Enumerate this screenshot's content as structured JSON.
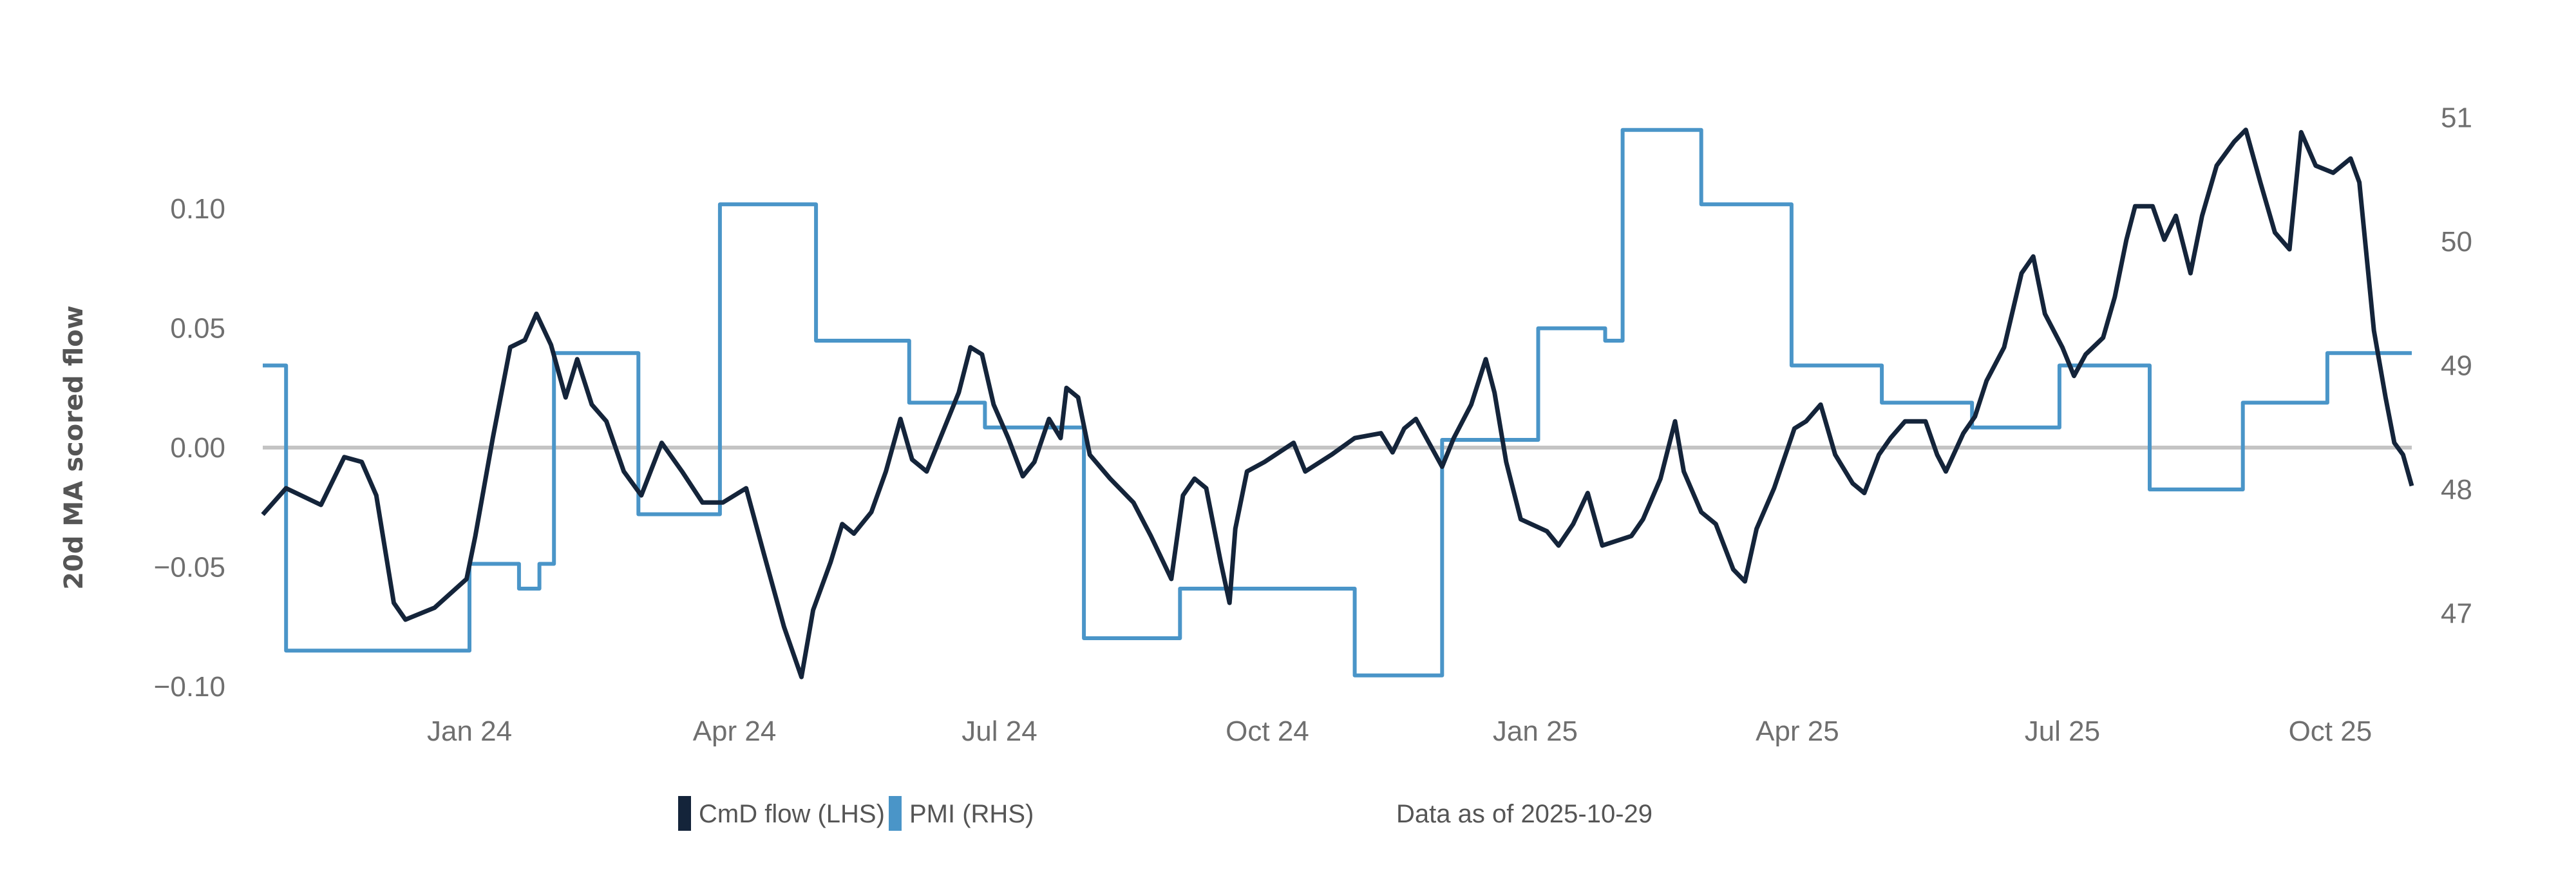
{
  "chart_data": {
    "type": "line",
    "title": "",
    "ylabel": "20d MA scored flow",
    "xlim": [
      "2023-10-22",
      "2025-10-29"
    ],
    "ylim": [
      -0.115,
      0.135
    ],
    "y2lim": [
      46.2,
      51.4
    ],
    "grid": false,
    "zero_line": true,
    "legend_position": "bottom",
    "x_ticks": [
      {
        "date": "2024-01-01",
        "label": "Jan 24"
      },
      {
        "date": "2024-04-01",
        "label": "Apr 24"
      },
      {
        "date": "2024-07-01",
        "label": "Jul 24"
      },
      {
        "date": "2024-10-01",
        "label": "Oct 24"
      },
      {
        "date": "2025-01-01",
        "label": "Jan 25"
      },
      {
        "date": "2025-04-01",
        "label": "Apr 25"
      },
      {
        "date": "2025-07-01",
        "label": "Jul 25"
      },
      {
        "date": "2025-10-01",
        "label": "Oct 25"
      }
    ],
    "y_ticks": [
      {
        "value": 0.1,
        "label": "0.10"
      },
      {
        "value": 0.05,
        "label": "0.05"
      },
      {
        "value": 0.0,
        "label": "0.00"
      },
      {
        "value": -0.05,
        "label": "−0.05"
      },
      {
        "value": -0.1,
        "label": "−0.10"
      }
    ],
    "y2_ticks": [
      {
        "value": 51,
        "label": "51"
      },
      {
        "value": 50,
        "label": "50"
      },
      {
        "value": 49,
        "label": "49"
      },
      {
        "value": 48,
        "label": "48"
      },
      {
        "value": 47,
        "label": "47"
      }
    ],
    "note": "Data as of 2025-10-29",
    "series": [
      {
        "name": "CmD flow (LHS)",
        "axis": "left",
        "color": "#14243a",
        "points": [
          [
            "2023-10-22",
            -0.028
          ],
          [
            "2023-10-30",
            -0.017
          ],
          [
            "2023-11-11",
            -0.024
          ],
          [
            "2023-11-19",
            -0.004
          ],
          [
            "2023-11-25",
            -0.006
          ],
          [
            "2023-11-30",
            -0.02
          ],
          [
            "2023-12-06",
            -0.065
          ],
          [
            "2023-12-10",
            -0.072
          ],
          [
            "2023-12-20",
            -0.067
          ],
          [
            "2023-12-31",
            -0.055
          ],
          [
            "2024-01-03",
            -0.037
          ],
          [
            "2024-01-09",
            0.004
          ],
          [
            "2024-01-15",
            0.042
          ],
          [
            "2024-01-20",
            0.045
          ],
          [
            "2024-01-24",
            0.056
          ],
          [
            "2024-01-29",
            0.043
          ],
          [
            "2024-02-03",
            0.021
          ],
          [
            "2024-02-07",
            0.037
          ],
          [
            "2024-02-12",
            0.018
          ],
          [
            "2024-02-17",
            0.011
          ],
          [
            "2024-02-23",
            -0.01
          ],
          [
            "2024-02-29",
            -0.02
          ],
          [
            "2024-03-07",
            0.002
          ],
          [
            "2024-03-14",
            -0.01
          ],
          [
            "2024-03-21",
            -0.023
          ],
          [
            "2024-03-28",
            -0.023
          ],
          [
            "2024-04-05",
            -0.017
          ],
          [
            "2024-04-11",
            -0.044
          ],
          [
            "2024-04-18",
            -0.075
          ],
          [
            "2024-04-24",
            -0.096
          ],
          [
            "2024-04-28",
            -0.068
          ],
          [
            "2024-05-04",
            -0.048
          ],
          [
            "2024-05-08",
            -0.032
          ],
          [
            "2024-05-12",
            -0.036
          ],
          [
            "2024-05-18",
            -0.027
          ],
          [
            "2024-05-23",
            -0.01
          ],
          [
            "2024-05-28",
            0.012
          ],
          [
            "2024-06-01",
            -0.005
          ],
          [
            "2024-06-06",
            -0.01
          ],
          [
            "2024-06-12",
            0.008
          ],
          [
            "2024-06-17",
            0.023
          ],
          [
            "2024-06-21",
            0.042
          ],
          [
            "2024-06-25",
            0.039
          ],
          [
            "2024-06-29",
            0.018
          ],
          [
            "2024-07-04",
            0.004
          ],
          [
            "2024-07-09",
            -0.012
          ],
          [
            "2024-07-13",
            -0.006
          ],
          [
            "2024-07-18",
            0.012
          ],
          [
            "2024-07-22",
            0.004
          ],
          [
            "2024-07-24",
            0.025
          ],
          [
            "2024-07-28",
            0.021
          ],
          [
            "2024-08-01",
            -0.003
          ],
          [
            "2024-08-08",
            -0.013
          ],
          [
            "2024-08-16",
            -0.023
          ],
          [
            "2024-08-22",
            -0.037
          ],
          [
            "2024-08-29",
            -0.055
          ],
          [
            "2024-09-02",
            -0.02
          ],
          [
            "2024-09-06",
            -0.013
          ],
          [
            "2024-09-10",
            -0.017
          ],
          [
            "2024-09-15",
            -0.048
          ],
          [
            "2024-09-18",
            -0.065
          ],
          [
            "2024-09-20",
            -0.034
          ],
          [
            "2024-09-24",
            -0.01
          ],
          [
            "2024-09-30",
            -0.006
          ],
          [
            "2024-10-10",
            0.002
          ],
          [
            "2024-10-14",
            -0.01
          ],
          [
            "2024-10-23",
            -0.003
          ],
          [
            "2024-10-31",
            0.004
          ],
          [
            "2024-11-09",
            0.006
          ],
          [
            "2024-11-13",
            -0.002
          ],
          [
            "2024-11-17",
            0.008
          ],
          [
            "2024-11-21",
            0.012
          ],
          [
            "2024-11-30",
            -0.008
          ],
          [
            "2024-12-04",
            0.004
          ],
          [
            "2024-12-10",
            0.018
          ],
          [
            "2024-12-15",
            0.037
          ],
          [
            "2024-12-18",
            0.023
          ],
          [
            "2024-12-22",
            -0.006
          ],
          [
            "2024-12-27",
            -0.03
          ],
          [
            "2025-01-05",
            -0.035
          ],
          [
            "2025-01-09",
            -0.041
          ],
          [
            "2025-01-14",
            -0.032
          ],
          [
            "2025-01-19",
            -0.019
          ],
          [
            "2025-01-24",
            -0.041
          ],
          [
            "2025-02-03",
            -0.037
          ],
          [
            "2025-02-07",
            -0.03
          ],
          [
            "2025-02-13",
            -0.013
          ],
          [
            "2025-02-18",
            0.011
          ],
          [
            "2025-02-21",
            -0.01
          ],
          [
            "2025-02-27",
            -0.027
          ],
          [
            "2025-03-04",
            -0.032
          ],
          [
            "2025-03-10",
            -0.051
          ],
          [
            "2025-03-14",
            -0.056
          ],
          [
            "2025-03-18",
            -0.034
          ],
          [
            "2025-03-24",
            -0.017
          ],
          [
            "2025-03-31",
            0.008
          ],
          [
            "2025-04-04",
            0.011
          ],
          [
            "2025-04-09",
            0.018
          ],
          [
            "2025-04-14",
            -0.003
          ],
          [
            "2025-04-20",
            -0.015
          ],
          [
            "2025-04-24",
            -0.019
          ],
          [
            "2025-04-29",
            -0.003
          ],
          [
            "2025-05-03",
            0.004
          ],
          [
            "2025-05-08",
            0.011
          ],
          [
            "2025-05-15",
            0.011
          ],
          [
            "2025-05-19",
            -0.003
          ],
          [
            "2025-05-22",
            -0.01
          ],
          [
            "2025-05-28",
            0.006
          ],
          [
            "2025-06-01",
            0.013
          ],
          [
            "2025-06-05",
            0.028
          ],
          [
            "2025-06-11",
            0.042
          ],
          [
            "2025-06-17",
            0.073
          ],
          [
            "2025-06-21",
            0.08
          ],
          [
            "2025-06-25",
            0.056
          ],
          [
            "2025-07-01",
            0.042
          ],
          [
            "2025-07-05",
            0.03
          ],
          [
            "2025-07-09",
            0.039
          ],
          [
            "2025-07-15",
            0.046
          ],
          [
            "2025-07-19",
            0.063
          ],
          [
            "2025-07-23",
            0.087
          ],
          [
            "2025-07-26",
            0.101
          ],
          [
            "2025-08-01",
            0.101
          ],
          [
            "2025-08-05",
            0.087
          ],
          [
            "2025-08-09",
            0.097
          ],
          [
            "2025-08-14",
            0.073
          ],
          [
            "2025-08-18",
            0.097
          ],
          [
            "2025-08-23",
            0.118
          ],
          [
            "2025-08-29",
            0.128
          ],
          [
            "2025-09-02",
            0.133
          ],
          [
            "2025-09-07",
            0.111
          ],
          [
            "2025-09-12",
            0.09
          ],
          [
            "2025-09-17",
            0.083
          ],
          [
            "2025-09-21",
            0.132
          ],
          [
            "2025-09-26",
            0.118
          ],
          [
            "2025-10-02",
            0.115
          ],
          [
            "2025-10-08",
            0.121
          ],
          [
            "2025-10-11",
            0.111
          ],
          [
            "2025-10-16",
            0.049
          ],
          [
            "2025-10-20",
            0.021
          ],
          [
            "2025-10-23",
            0.002
          ],
          [
            "2025-10-26",
            -0.003
          ],
          [
            "2025-10-29",
            -0.016
          ]
        ]
      },
      {
        "name": "PMI (RHS)",
        "axis": "right",
        "color": "#4a95c8",
        "step": true,
        "points": [
          [
            "2023-10-22",
            49.0
          ],
          [
            "2023-10-30",
            46.7
          ],
          [
            "2024-01-01",
            47.4
          ],
          [
            "2024-01-18",
            47.2
          ],
          [
            "2024-01-25",
            47.4
          ],
          [
            "2024-01-30",
            49.1
          ],
          [
            "2024-02-28",
            47.8
          ],
          [
            "2024-03-27",
            50.3
          ],
          [
            "2024-04-29",
            49.2
          ],
          [
            "2024-05-31",
            48.7
          ],
          [
            "2024-06-26",
            48.5
          ],
          [
            "2024-07-30",
            46.8
          ],
          [
            "2024-09-01",
            47.2
          ],
          [
            "2024-10-31",
            46.5
          ],
          [
            "2024-11-30",
            48.4
          ],
          [
            "2025-01-02",
            49.3
          ],
          [
            "2025-01-25",
            49.2
          ],
          [
            "2025-01-31",
            50.9
          ],
          [
            "2025-02-27",
            50.3
          ],
          [
            "2025-03-30",
            49.0
          ],
          [
            "2025-04-30",
            48.7
          ],
          [
            "2025-05-31",
            48.5
          ],
          [
            "2025-06-30",
            49.0
          ],
          [
            "2025-07-31",
            48.0
          ],
          [
            "2025-09-01",
            48.7
          ],
          [
            "2025-09-30",
            49.1
          ],
          [
            "2025-10-29",
            49.1
          ]
        ]
      }
    ]
  }
}
